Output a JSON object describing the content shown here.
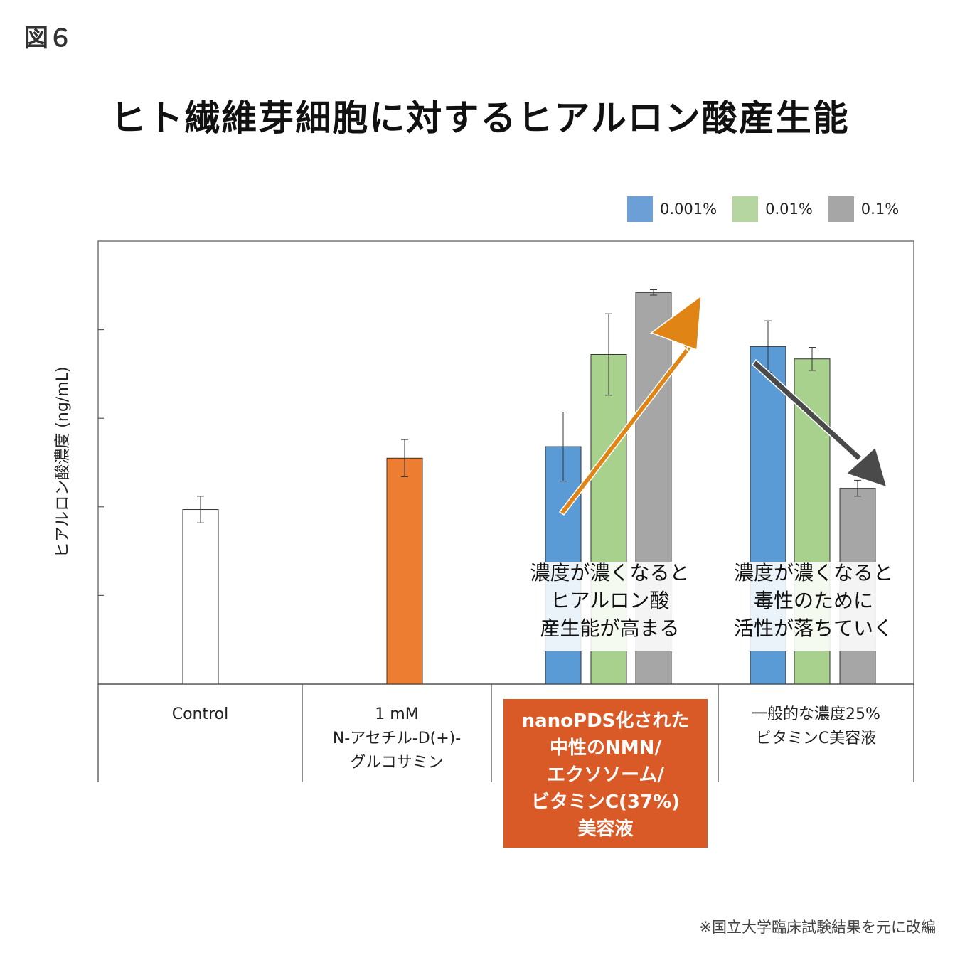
{
  "figure_label": "図６",
  "chart_data": {
    "type": "bar",
    "title": "ヒト繊維芽細胞に対するヒアルロン酸産生能",
    "ylabel": "ヒアルロン酸濃度 (ng/mL)",
    "xlabel": "",
    "ylim": [
      0,
      5
    ],
    "yticks": [
      1,
      2,
      3,
      4
    ],
    "tick_labels_shown": false,
    "legend": [
      {
        "name": "0.001%",
        "color": "#5B9BD5"
      },
      {
        "name": "0.01%",
        "color": "#A9D18E"
      },
      {
        "name": "0.1%",
        "color": "#A6A6A6"
      }
    ],
    "groups": [
      {
        "category": "Control",
        "bars": [
          {
            "value": 1.97,
            "err": 0.15,
            "color": "#FFFFFF"
          }
        ]
      },
      {
        "category": "1 mM N-アセチル-D(+)-グルコサミン",
        "bars": [
          {
            "value": 2.55,
            "err": 0.21,
            "color": "#ED7D31"
          }
        ]
      },
      {
        "category": "nanoPDS化された中性のNMN/エクソソーム/ビタミンC(37%)美容液",
        "bars": [
          {
            "value": 2.68,
            "err": 0.39,
            "color": "#5B9BD5"
          },
          {
            "value": 3.72,
            "err": 0.46,
            "color": "#A9D18E"
          },
          {
            "value": 4.42,
            "err": 0.03,
            "color": "#A6A6A6"
          }
        ]
      },
      {
        "category": "一般的な濃度25% ビタミンC美容液",
        "bars": [
          {
            "value": 3.81,
            "err": 0.29,
            "color": "#5B9BD5"
          },
          {
            "value": 3.67,
            "err": 0.13,
            "color": "#A9D18E"
          },
          {
            "value": 2.21,
            "err": 0.09,
            "color": "#A6A6A6"
          }
        ]
      }
    ],
    "annotations": [
      {
        "lines": [
          "濃度が濃くなると",
          "ヒアルロン酸",
          "産生能が高まる"
        ],
        "arrow": "up",
        "color": "#DF8415"
      },
      {
        "lines": [
          "濃度が濃くなると",
          "毒性のために",
          "活性が落ちていく"
        ],
        "arrow": "down",
        "color": "#4A4A4A"
      }
    ]
  },
  "categories": {
    "control": [
      "Control"
    ],
    "nag": [
      "1 mM",
      "N-アセチル-D(+)-",
      "グルコサミン"
    ],
    "nanopds": [
      "nanoPDS化された",
      "中性のNMN/",
      "エクソソーム/",
      "ビタミンC(37%)",
      "美容液"
    ],
    "vitc": [
      "一般的な濃度25%",
      "ビタミンC美容液"
    ]
  },
  "footnote": "※国立大学臨床試験結果を元に改編"
}
